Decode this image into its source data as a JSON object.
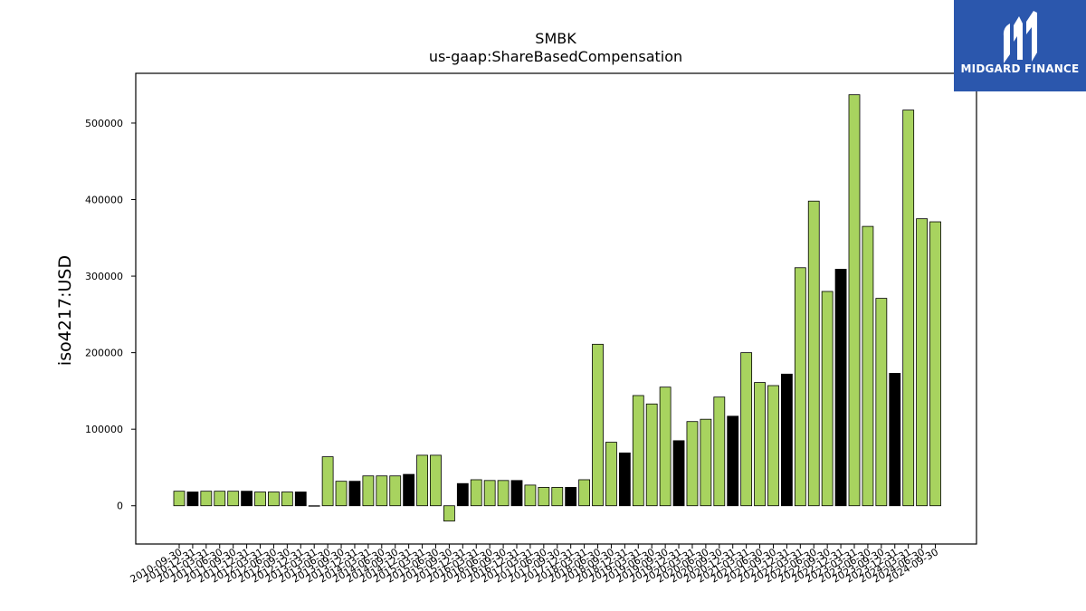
{
  "brand": {
    "name": "MIDGARD FINANCE",
    "logo_icon": "midgard-m-logo-icon",
    "bg_color": "#2b57ad"
  },
  "chart_data": {
    "type": "bar",
    "title": "SMBK",
    "subtitle": "us-gaap:ShareBasedCompensation",
    "xlabel": "",
    "ylabel": "iso4217:USD",
    "ylim": [
      -50000,
      565000
    ],
    "yticks": [
      0,
      100000,
      200000,
      300000,
      400000,
      500000
    ],
    "grid": false,
    "colors": {
      "quarter": "#a8d35f",
      "year_end": "#000000",
      "edge": "#000000"
    },
    "categories": [
      "2010-09-30",
      "2010-12-31",
      "2011-03-31",
      "2011-06-30",
      "2011-09-30",
      "2011-12-31",
      "2012-03-31",
      "2012-06-30",
      "2012-09-30",
      "2012-12-31",
      "2013-03-31",
      "2013-06-30",
      "2013-09-30",
      "2013-12-31",
      "2014-03-31",
      "2014-06-30",
      "2014-09-30",
      "2014-12-31",
      "2015-03-31",
      "2015-06-30",
      "2015-09-30",
      "2015-12-31",
      "2016-03-31",
      "2016-06-30",
      "2016-09-30",
      "2016-12-31",
      "2017-03-31",
      "2017-06-30",
      "2017-09-30",
      "2017-12-31",
      "2018-03-31",
      "2018-06-30",
      "2018-09-30",
      "2018-12-31",
      "2019-03-31",
      "2019-06-30",
      "2019-09-30",
      "2019-12-31",
      "2020-03-31",
      "2020-06-30",
      "2020-09-30",
      "2020-12-31",
      "2021-03-31",
      "2021-06-30",
      "2021-09-30",
      "2021-12-31",
      "2022-03-31",
      "2022-06-30",
      "2022-09-30",
      "2022-12-31",
      "2023-03-31",
      "2023-06-30",
      "2023-09-30",
      "2023-12-31",
      "2024-03-31",
      "2024-06-30",
      "2024-09-30"
    ],
    "values": [
      19000,
      18000,
      19000,
      19000,
      19000,
      19000,
      18000,
      18000,
      18000,
      18000,
      0,
      64000,
      32000,
      32000,
      39000,
      39000,
      39000,
      41000,
      66000,
      66000,
      -20000,
      29000,
      34000,
      33000,
      33000,
      33000,
      27000,
      24000,
      24000,
      24000,
      34000,
      211000,
      83000,
      69000,
      144000,
      133000,
      155000,
      85000,
      110000,
      113000,
      142000,
      117000,
      200000,
      161000,
      157000,
      172000,
      311000,
      398000,
      280000,
      309000,
      537000,
      365000,
      271000,
      173000,
      517000,
      375000,
      371000
    ],
    "year_end": [
      false,
      true,
      false,
      false,
      false,
      true,
      false,
      false,
      false,
      true,
      false,
      false,
      false,
      true,
      false,
      false,
      false,
      true,
      false,
      false,
      false,
      true,
      false,
      false,
      false,
      true,
      false,
      false,
      false,
      true,
      false,
      false,
      false,
      true,
      false,
      false,
      false,
      true,
      false,
      false,
      false,
      true,
      false,
      false,
      false,
      true,
      false,
      false,
      false,
      true,
      false,
      false,
      false,
      true,
      false,
      false,
      false
    ]
  }
}
